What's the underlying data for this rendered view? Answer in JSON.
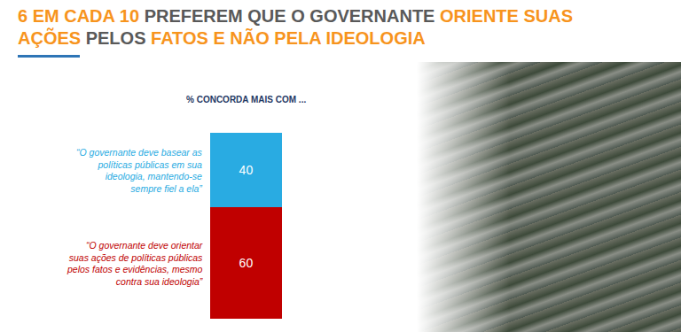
{
  "chart_data": {
    "type": "bar",
    "stacked": true,
    "title": [
      {
        "text": "6 EM CADA 10",
        "color": "#f7941d"
      },
      {
        "text": " PREFEREM QUE O GOVERNANTE ",
        "color": "#595959"
      },
      {
        "text": "ORIENTE SUAS\nAÇÕES",
        "color": "#f7941d"
      },
      {
        "text": " PELOS ",
        "color": "#595959"
      },
      {
        "text": "FATOS E NÃO PELA IDEOLOGIA",
        "color": "#f7941d"
      }
    ],
    "subtitle": "% CONCORDA MAIS COM ...",
    "categories": [
      null
    ],
    "series": [
      {
        "name": "“O governante deve orientar\nsuas ações de políticas públicas\npelos fatos e evidências, mesmo\ncontra sua ideologia”",
        "color": "#c00000",
        "values": [
          60
        ]
      },
      {
        "name": "“O governante deve basear as\npolíticas públicas em sua\nideologia, mantendo-se\nsempre fiel a ela”",
        "color": "#29abe2",
        "values": [
          40
        ]
      }
    ],
    "ylim": [
      0,
      100
    ],
    "data_labels": true,
    "tick_labels": false,
    "grid": false
  }
}
